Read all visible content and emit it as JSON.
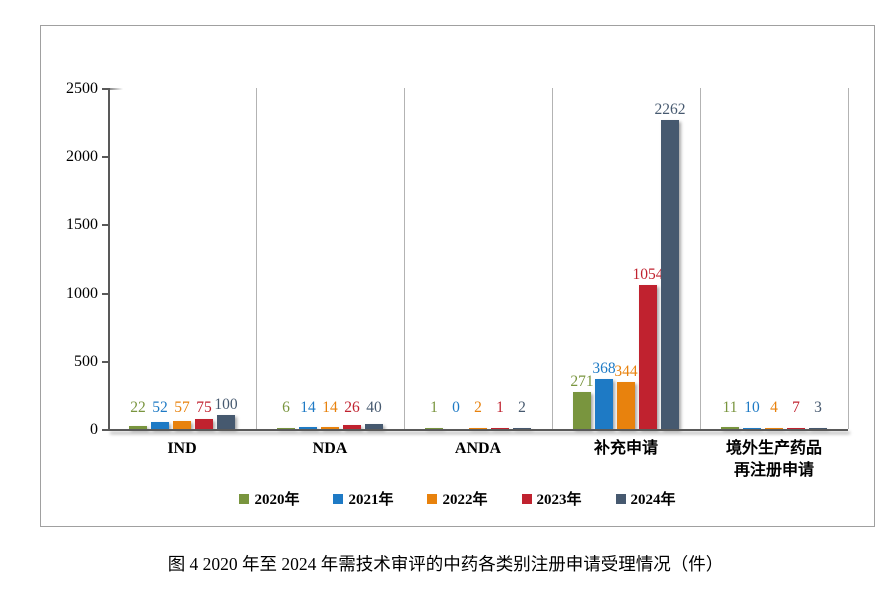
{
  "caption": "图 4  2020 年至 2024 年需技术审评的中药各类别注册申请受理情况（件）",
  "chart_data": {
    "type": "bar",
    "title": "",
    "xlabel": "",
    "ylabel": "",
    "categories": [
      "IND",
      "NDA",
      "ANDA",
      "补充申请",
      "境外生产药品\n再注册申请"
    ],
    "series": [
      {
        "name": "2020年",
        "color": "#79953E",
        "values": [
          22,
          6,
          1,
          271,
          11
        ]
      },
      {
        "name": "2021年",
        "color": "#1E7AC5",
        "values": [
          52,
          14,
          0,
          368,
          10
        ]
      },
      {
        "name": "2022年",
        "color": "#E8820D",
        "values": [
          57,
          14,
          2,
          344,
          4
        ]
      },
      {
        "name": "2023年",
        "color": "#C0222F",
        "values": [
          75,
          26,
          1,
          1054,
          7
        ]
      },
      {
        "name": "2024年",
        "color": "#46596F",
        "values": [
          100,
          40,
          2,
          2262,
          3
        ]
      }
    ],
    "ylim": [
      0,
      2500
    ],
    "yticks": [
      0,
      500,
      1000,
      1500,
      2000,
      2500
    ],
    "grid": "vertical-category-separators",
    "legend_position": "bottom",
    "value_labels": "outside-end-colored-per-series"
  }
}
